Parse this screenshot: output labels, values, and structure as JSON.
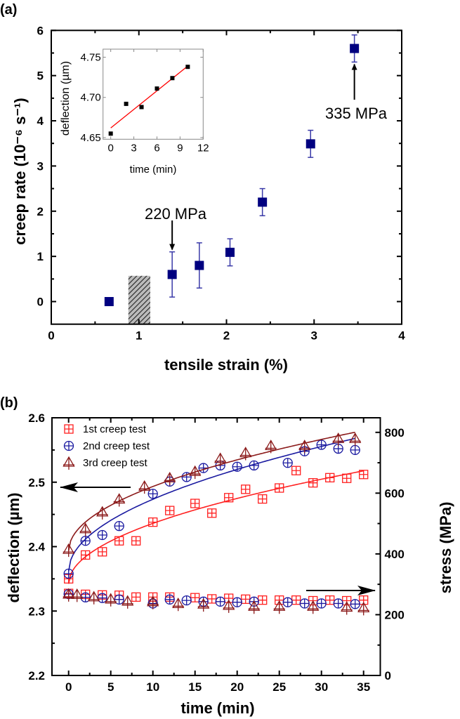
{
  "chart_data": [
    {
      "panel_label": "(a)",
      "type": "scatter",
      "xlabel": "tensile strain (%)",
      "ylabel": "creep rate (10⁻⁶ s⁻¹)",
      "xlim": [
        0,
        4
      ],
      "ylim": [
        -0.5,
        6
      ],
      "xticks": [
        "0",
        "1",
        "2",
        "3",
        "4"
      ],
      "yticks": [
        "0",
        "1",
        "2",
        "3",
        "4",
        "5",
        "6"
      ],
      "grid": false,
      "marker_color": "#000080",
      "points": [
        {
          "x": 0.66,
          "y": 0.0,
          "err": 0
        },
        {
          "x": 1.38,
          "y": 0.6,
          "err": 0.5
        },
        {
          "x": 1.69,
          "y": 0.8,
          "err": 0.5
        },
        {
          "x": 2.04,
          "y": 1.09,
          "err": 0.3
        },
        {
          "x": 2.41,
          "y": 2.2,
          "err": 0.3
        },
        {
          "x": 2.96,
          "y": 3.49,
          "err": 0.3
        },
        {
          "x": 3.46,
          "y": 5.6,
          "err": 0.3
        }
      ],
      "shaded_region": {
        "x": [
          0.88,
          1.13
        ],
        "y": [
          -0.5,
          0.57
        ]
      },
      "annotations": [
        {
          "text": "220 MPa",
          "arrow_to": {
            "x": 1.38,
            "y": 1.15
          }
        },
        {
          "text": "335 MPa",
          "arrow_to": {
            "x": 3.46,
            "y": 5.25
          }
        }
      ],
      "inset": {
        "type": "scatter",
        "xlabel": "time (min)",
        "ylabel": "deflection (µm)",
        "xlim": [
          -1,
          12
        ],
        "ylim": [
          4.648,
          4.76
        ],
        "xticks": [
          "0",
          "3",
          "6",
          "9",
          "12"
        ],
        "yticks": [
          "4.65",
          "4.70",
          "4.75"
        ],
        "x": [
          0,
          2,
          4,
          6,
          8,
          10
        ],
        "y": [
          4.655,
          4.692,
          4.688,
          4.711,
          4.724,
          4.738
        ],
        "fit_line": {
          "x": [
            0,
            10
          ],
          "y": [
            4.662,
            4.739
          ],
          "color": "#ff0000"
        }
      }
    },
    {
      "panel_label": "(b)",
      "type": "scatter",
      "xlabel": "time (min)",
      "ylabel": "deflection (µm)",
      "y2label": "stress (MPa)",
      "xlim": [
        -1,
        37
      ],
      "ylim": [
        2.2,
        2.6
      ],
      "y2lim": [
        0,
        848
      ],
      "xticks": [
        "0",
        "5",
        "10",
        "15",
        "20",
        "25",
        "30",
        "35"
      ],
      "yticks": [
        "2.2",
        "2.3",
        "2.4",
        "2.5",
        "2.6"
      ],
      "y2ticks": [
        "0",
        "200",
        "400",
        "600",
        "800"
      ],
      "grid": false,
      "legend_position": "top-left",
      "series": [
        {
          "name": "1st creep test",
          "color": "#ff2020",
          "marker": "square-plus",
          "deflection": {
            "x": [
              0,
              2,
              4,
              6,
              8,
              10,
              12,
              15,
              17,
              19,
              21,
              23,
              25,
              27,
              29,
              31,
              33,
              35
            ],
            "y": [
              2.35,
              2.387,
              2.392,
              2.409,
              2.409,
              2.438,
              2.456,
              2.467,
              2.452,
              2.476,
              2.489,
              2.474,
              2.491,
              2.518,
              2.499,
              2.507,
              2.506,
              2.512
            ]
          },
          "stress": {
            "x": [
              0,
              2,
              4,
              6,
              8,
              10,
              12,
              15,
              17,
              19,
              21,
              23,
              25,
              27,
              29,
              31,
              33,
              35
            ],
            "y": [
              270,
              267,
              265,
              264,
              258,
              258,
              258,
              256,
              252,
              254,
              251,
              248,
              248,
              248,
              246,
              248,
              246,
              248
            ]
          }
        },
        {
          "name": "2nd creep test",
          "color": "#1a1aa0",
          "marker": "circle-plus",
          "deflection": {
            "x": [
              0,
              2,
              4,
              6,
              10,
              12,
              14,
              16,
              18,
              20,
              22,
              26,
              28,
              30,
              32,
              34
            ],
            "y": [
              2.358,
              2.409,
              2.418,
              2.432,
              2.482,
              2.501,
              2.508,
              2.522,
              2.526,
              2.524,
              2.526,
              2.53,
              2.548,
              2.558,
              2.552,
              2.55
            ]
          },
          "stress": {
            "x": [
              0,
              2,
              4,
              6,
              10,
              12,
              14,
              16,
              18,
              20,
              22,
              26,
              28,
              30,
              32,
              34
            ],
            "y": [
              268,
              257,
              255,
              250,
              237,
              250,
              247,
              243,
              243,
              241,
              243,
              241,
              237,
              237,
              237,
              235
            ]
          }
        },
        {
          "name": "3rd creep test",
          "color": "#8b1a1a",
          "marker": "triangle-cross",
          "deflection": {
            "x": [
              0,
              2,
              4,
              6,
              9,
              12,
              15,
              18,
              21,
              24,
              28,
              32,
              34
            ],
            "y": [
              2.395,
              2.427,
              2.453,
              2.473,
              2.493,
              2.506,
              2.516,
              2.536,
              2.545,
              2.556,
              2.556,
              2.567,
              2.567
            ]
          },
          "stress": {
            "x": [
              0,
              1,
              3,
              5,
              7,
              10,
              13,
              16,
              19,
              22,
              25,
              29,
              33,
              35
            ],
            "y": [
              266,
              265,
              257,
              250,
              243,
              241,
              235,
              233,
              229,
              226,
              226,
              226,
              223,
              221
            ]
          }
        }
      ],
      "arrows": [
        {
          "direction": "left",
          "points_to": "left axis"
        },
        {
          "direction": "right",
          "points_to": "right axis"
        }
      ]
    }
  ]
}
